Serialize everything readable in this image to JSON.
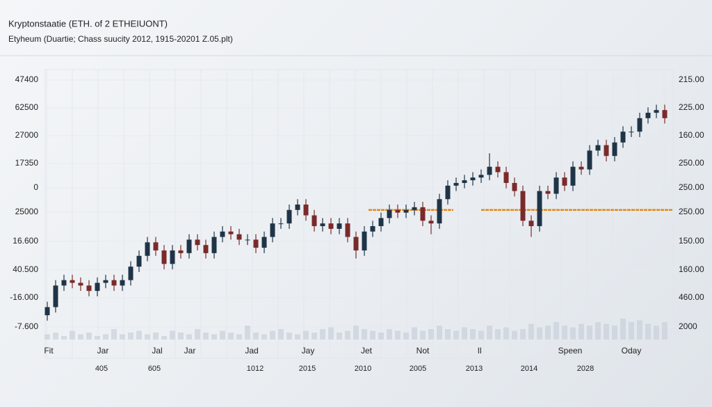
{
  "chart_data": {
    "type": "candlestick",
    "title": "Kryptonstaatie (ETH. of 2 ETHEIUONT)",
    "subtitle": "Etyheum (Duartie; Chass suucity 2012, 1915-20201 Z.05.plt)",
    "left_axis_labels": [
      "47400",
      "62500",
      "27000",
      "17350",
      "0",
      "25000",
      "16.600",
      "40.500",
      "-16.000",
      "-7.600"
    ],
    "right_axis_labels": [
      "215.00",
      "225.00",
      "160.00",
      "250.00",
      "250.00",
      "250.00",
      "150.00",
      "160.00",
      "460.00",
      "2000"
    ],
    "x_labels": [
      "Fit",
      "Jar",
      "Jal",
      "Jar",
      "Jad",
      "Jay",
      "Jet",
      "Not",
      "lI",
      "Speen",
      "Oday"
    ],
    "x_labels_secondary": [
      "405",
      "605",
      "1012",
      "2015",
      "2010",
      "2005",
      "2013",
      "2014",
      "2028"
    ],
    "ylim": [
      0,
      100
    ],
    "up_color": "#1f3447",
    "down_color": "#7a2a2a",
    "volume_color": "#c9d0da",
    "reference_color": "#e08a1e",
    "reference_level": 48,
    "grid": true,
    "open": [
      9,
      12,
      20,
      22,
      21,
      20,
      18,
      21,
      22,
      20,
      22,
      27,
      31,
      36,
      33,
      28,
      33,
      32,
      37,
      35,
      32,
      38,
      40,
      39,
      37,
      37,
      34,
      38,
      43,
      43,
      48,
      50,
      46,
      42,
      43,
      41,
      43,
      38,
      33,
      40,
      42,
      45,
      48,
      47,
      48,
      49,
      44,
      43,
      52,
      57,
      58,
      59,
      60,
      61,
      64,
      62,
      58,
      55,
      44,
      42,
      55,
      54,
      60,
      57,
      64,
      63,
      70,
      72,
      68,
      73,
      77,
      77,
      82,
      84,
      85
    ],
    "high": [
      14,
      22,
      24,
      24,
      23,
      22,
      23,
      24,
      24,
      24,
      29,
      33,
      38,
      38,
      35,
      35,
      35,
      39,
      39,
      37,
      40,
      42,
      42,
      41,
      39,
      39,
      40,
      45,
      45,
      50,
      52,
      52,
      48,
      45,
      45,
      45,
      45,
      40,
      42,
      44,
      47,
      50,
      50,
      50,
      51,
      51,
      46,
      54,
      59,
      60,
      61,
      62,
      63,
      69,
      66,
      64,
      60,
      57,
      46,
      57,
      57,
      62,
      62,
      66,
      66,
      72,
      74,
      74,
      75,
      79,
      79,
      84,
      86,
      87,
      87
    ],
    "low": [
      7,
      10,
      18,
      19,
      18,
      16,
      16,
      19,
      18,
      18,
      20,
      25,
      29,
      31,
      26,
      26,
      30,
      30,
      33,
      30,
      30,
      36,
      37,
      35,
      35,
      32,
      32,
      36,
      41,
      41,
      46,
      44,
      40,
      40,
      39,
      39,
      36,
      30,
      31,
      38,
      40,
      43,
      45,
      45,
      46,
      42,
      39,
      41,
      50,
      55,
      56,
      57,
      58,
      59,
      60,
      56,
      53,
      42,
      38,
      40,
      52,
      52,
      55,
      55,
      61,
      61,
      68,
      66,
      66,
      71,
      75,
      75,
      80,
      82,
      80
    ],
    "close": [
      12,
      20,
      22,
      21,
      20,
      18,
      21,
      22,
      20,
      22,
      27,
      31,
      36,
      33,
      28,
      33,
      32,
      37,
      35,
      32,
      38,
      40,
      39,
      37,
      37,
      34,
      38,
      43,
      43,
      48,
      50,
      46,
      42,
      43,
      41,
      43,
      38,
      33,
      40,
      42,
      45,
      48,
      47,
      48,
      49,
      44,
      43,
      52,
      57,
      58,
      59,
      60,
      61,
      64,
      62,
      58,
      55,
      44,
      42,
      55,
      54,
      60,
      57,
      64,
      63,
      70,
      72,
      68,
      73,
      77,
      77,
      82,
      84,
      85,
      82
    ],
    "volume_ylim": [
      0,
      20
    ],
    "volume": [
      3,
      4,
      2,
      5,
      3,
      4,
      2,
      3,
      6,
      3,
      4,
      5,
      3,
      4,
      2,
      5,
      4,
      3,
      6,
      4,
      3,
      5,
      4,
      3,
      8,
      4,
      3,
      5,
      6,
      4,
      3,
      5,
      4,
      6,
      7,
      4,
      5,
      8,
      6,
      5,
      4,
      6,
      5,
      4,
      7,
      5,
      6,
      8,
      6,
      5,
      7,
      6,
      5,
      8,
      6,
      7,
      5,
      6,
      9,
      7,
      8,
      10,
      8,
      7,
      9,
      8,
      10,
      9,
      8,
      12,
      10,
      11,
      9,
      8,
      10
    ]
  }
}
